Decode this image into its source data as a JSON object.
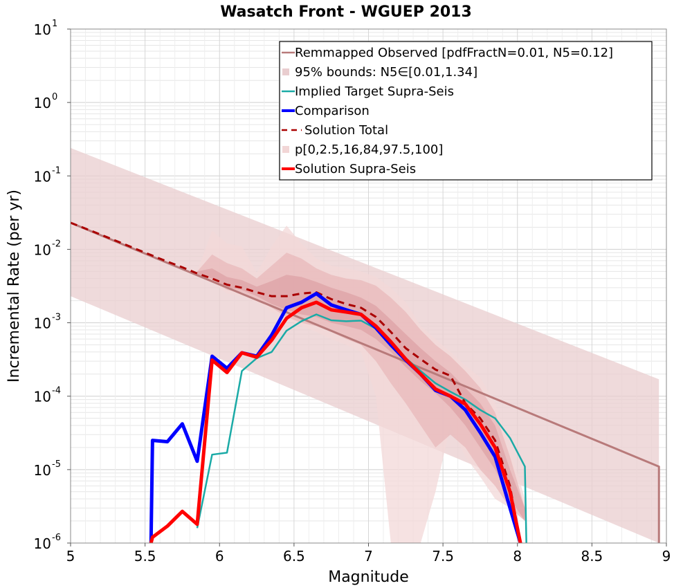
{
  "chart_data": {
    "type": "line",
    "title": "Wasatch Front - WGUEP 2013",
    "xlabel": "Magnitude",
    "ylabel": "Incremental Rate (per yr)",
    "xlim": [
      5,
      9
    ],
    "ylim": [
      1e-06,
      10
    ],
    "yscale": "log",
    "grid": true,
    "legend_position": "top-right",
    "x_ticks": [
      "5",
      "5.5",
      "6",
      "6.5",
      "7",
      "7.5",
      "8",
      "8.5",
      "9"
    ],
    "y_ticks": [
      {
        "base": "10",
        "exp": "-6"
      },
      {
        "base": "10",
        "exp": "-5"
      },
      {
        "base": "10",
        "exp": "-4"
      },
      {
        "base": "10",
        "exp": "-3"
      },
      {
        "base": "10",
        "exp": "-2"
      },
      {
        "base": "10",
        "exp": "-1"
      },
      {
        "base": "10",
        "exp": "0"
      },
      {
        "base": "10",
        "exp": "1"
      }
    ],
    "legend": [
      {
        "label": "Remmapped Observed [pdfFractN=0.01, N5=0.12]",
        "kind": "line",
        "color": "#b87a7a"
      },
      {
        "label": "95% bounds: N5∈[0.01,1.34]",
        "kind": "band",
        "color": "#e9cdcf"
      },
      {
        "label": "Implied Target Supra-Seis",
        "kind": "line",
        "color": "#1aaaa6"
      },
      {
        "label": "Comparison",
        "kind": "line",
        "color": "#0000ff"
      },
      {
        "label": "Solution Total",
        "kind": "dashed",
        "color": "#aa0000"
      },
      {
        "label": "p[0,2.5,16,84,97.5,100]",
        "kind": "band",
        "color": "#f2d6d6"
      },
      {
        "label": "Solution Supra-Seis",
        "kind": "line",
        "color": "#ff0000"
      }
    ],
    "bounds_band": {
      "name": "95% bounds: N5∈[0.01,1.34]",
      "color": "#e9cdcf",
      "x": [
        5.0,
        8.95
      ],
      "lower": [
        0.0023,
        1e-06
      ],
      "upper": [
        0.24,
        0.00017
      ]
    },
    "percentile_bands": [
      {
        "name": "p0-p100",
        "color": "#f3d8d8",
        "x": [
          5.85,
          5.95,
          6.05,
          6.15,
          6.25,
          6.35,
          6.45,
          6.55,
          6.65,
          6.75,
          6.85,
          6.95,
          7.05,
          7.15,
          7.25,
          7.35,
          7.45,
          7.55,
          7.65,
          7.75,
          7.85,
          7.95,
          8.05
        ],
        "lower": [
          0.0045,
          0.0036,
          0.0025,
          0.0023,
          0.0019,
          0.0014,
          0.0011,
          0.0009,
          0.00075,
          0.0006,
          0.0005,
          0.0004,
          0.0001,
          1e-06,
          1e-06,
          1e-06,
          5e-06,
          4e-05,
          1.5e-05,
          8e-06,
          4e-06,
          3e-06,
          2e-06
        ],
        "upper": [
          0.005,
          0.018,
          0.012,
          0.011,
          0.0048,
          0.011,
          0.021,
          0.012,
          0.0075,
          0.006,
          0.0055,
          0.005,
          0.0042,
          0.003,
          0.0019,
          0.0009,
          0.0006,
          0.0004,
          0.00026,
          0.00018,
          8e-05,
          2e-05,
          4e-06
        ]
      },
      {
        "name": "p2.5-p97.5",
        "color": "#e8b8ba",
        "x": [
          5.85,
          5.95,
          6.05,
          6.15,
          6.25,
          6.35,
          6.45,
          6.55,
          6.65,
          6.75,
          6.85,
          6.95,
          7.05,
          7.15,
          7.25,
          7.35,
          7.45,
          7.55,
          7.65,
          7.75,
          7.85,
          7.95,
          8.05
        ],
        "lower": [
          0.0045,
          0.0038,
          0.0028,
          0.0026,
          0.0021,
          0.0016,
          0.0012,
          0.001,
          0.0009,
          0.00075,
          0.0006,
          0.0005,
          0.0003,
          0.00015,
          8e-05,
          4e-05,
          2e-05,
          3e-05,
          2e-05,
          1e-05,
          6e-06,
          3e-06,
          2e-06
        ],
        "upper": [
          0.005,
          0.0085,
          0.0065,
          0.0055,
          0.004,
          0.006,
          0.009,
          0.0075,
          0.0055,
          0.0045,
          0.004,
          0.0038,
          0.0032,
          0.0022,
          0.0014,
          0.0008,
          0.0005,
          0.00035,
          0.00022,
          0.00013,
          6e-05,
          1.5e-05,
          3e-06
        ]
      },
      {
        "name": "p16-p84",
        "color": "#dea2a5",
        "x": [
          5.85,
          5.95,
          6.05,
          6.15,
          6.25,
          6.35,
          6.45,
          6.55,
          6.65,
          6.75,
          6.85,
          6.95,
          7.05,
          7.15,
          7.25,
          7.35,
          7.45,
          7.55,
          7.65,
          7.75,
          7.85,
          7.95,
          8.05
        ],
        "lower": [
          0.0045,
          0.004,
          0.003,
          0.0028,
          0.0023,
          0.0018,
          0.0015,
          0.0013,
          0.0012,
          0.001,
          0.0009,
          0.0008,
          0.0006,
          0.0004,
          0.00025,
          0.00016,
          0.00011,
          7e-05,
          4e-05,
          2e-05,
          1e-05,
          4e-06,
          2e-06
        ],
        "upper": [
          0.005,
          0.0055,
          0.0042,
          0.0038,
          0.0031,
          0.0037,
          0.0045,
          0.0042,
          0.0036,
          0.003,
          0.0026,
          0.0022,
          0.0017,
          0.0011,
          0.0007,
          0.00045,
          0.0003,
          0.00021,
          0.00013,
          8e-05,
          4e-05,
          1e-05,
          3e-06
        ]
      }
    ],
    "series": [
      {
        "name": "Remmapped Observed [pdfFractN=0.01, N5=0.12]",
        "color": "#b87a7a",
        "width": 3,
        "x": [
          5.0,
          8.95,
          8.95
        ],
        "y": [
          0.023,
          1.1e-05,
          1e-06
        ]
      },
      {
        "name": "Implied Target Supra-Seis",
        "color": "#1aaaa6",
        "width": 2.5,
        "x": [
          5.85,
          5.95,
          6.05,
          6.15,
          6.25,
          6.35,
          6.45,
          6.55,
          6.65,
          6.75,
          6.85,
          6.95,
          7.05,
          7.15,
          7.25,
          7.35,
          7.45,
          7.55,
          7.65,
          7.75,
          7.85,
          7.95,
          8.05,
          8.06
        ],
        "y": [
          1.6e-06,
          1.6e-05,
          1.7e-05,
          0.00022,
          0.00033,
          0.0004,
          0.00078,
          0.00105,
          0.0013,
          0.00108,
          0.00105,
          0.00107,
          0.00083,
          0.00053,
          0.00033,
          0.00022,
          0.00015,
          0.000115,
          9e-05,
          6.5e-05,
          5e-05,
          2.7e-05,
          1.1e-05,
          1e-06
        ]
      },
      {
        "name": "Comparison",
        "color": "#0000ff",
        "width": 5,
        "x": [
          5.54,
          5.55,
          5.65,
          5.75,
          5.85,
          5.95,
          6.05,
          6.15,
          6.25,
          6.35,
          6.45,
          6.55,
          6.65,
          6.75,
          6.85,
          6.95,
          7.05,
          7.15,
          7.25,
          7.35,
          7.45,
          7.55,
          7.65,
          7.75,
          7.85,
          7.95,
          8.02
        ],
        "y": [
          1e-06,
          2.5e-05,
          2.4e-05,
          4.2e-05,
          1.3e-05,
          0.00035,
          0.00024,
          0.00039,
          0.00035,
          0.00068,
          0.0016,
          0.0019,
          0.0025,
          0.00175,
          0.0015,
          0.0013,
          0.00085,
          0.0005,
          0.00031,
          0.0002,
          0.00012,
          0.0001,
          6.5e-05,
          3.2e-05,
          1.5e-05,
          3e-06,
          1e-06
        ]
      },
      {
        "name": "Solution Total",
        "color": "#aa0000",
        "width": 3,
        "dashed": true,
        "x": [
          5.0,
          5.05,
          5.15,
          5.25,
          5.35,
          5.45,
          5.55,
          5.65,
          5.75,
          5.85,
          5.95,
          6.05,
          6.15,
          6.25,
          6.35,
          6.45,
          6.55,
          6.65,
          6.75,
          6.85,
          6.95,
          7.05,
          7.15,
          7.25,
          7.35,
          7.45,
          7.55,
          7.65,
          7.75,
          7.85,
          7.95,
          8.02
        ],
        "y": [
          0.023,
          0.021,
          0.0175,
          0.0145,
          0.012,
          0.0099,
          0.0082,
          0.0068,
          0.0057,
          0.0047,
          0.004,
          0.0033,
          0.003,
          0.0026,
          0.0023,
          0.0023,
          0.0025,
          0.0026,
          0.0021,
          0.0018,
          0.0016,
          0.0012,
          0.00075,
          0.00045,
          0.00032,
          0.00023,
          0.00019,
          8e-05,
          5e-05,
          2.5e-05,
          6e-06,
          1e-06
        ]
      },
      {
        "name": "Solution Supra-Seis",
        "color": "#ff0000",
        "width": 5,
        "x": [
          5.54,
          5.55,
          5.65,
          5.75,
          5.85,
          5.95,
          6.05,
          6.15,
          6.25,
          6.35,
          6.45,
          6.55,
          6.65,
          6.75,
          6.85,
          6.95,
          7.05,
          7.15,
          7.25,
          7.35,
          7.45,
          7.55,
          7.65,
          7.75,
          7.85,
          7.95,
          8.02
        ],
        "y": [
          1e-06,
          1.2e-06,
          1.7e-06,
          2.7e-06,
          1.8e-06,
          0.00031,
          0.00021,
          0.00039,
          0.00034,
          0.00058,
          0.00115,
          0.0016,
          0.0019,
          0.0015,
          0.0014,
          0.0013,
          0.0009,
          0.00055,
          0.00032,
          0.0002,
          0.000125,
          0.0001,
          7.8e-05,
          4.2e-05,
          2e-05,
          5e-06,
          1e-06
        ]
      }
    ]
  }
}
